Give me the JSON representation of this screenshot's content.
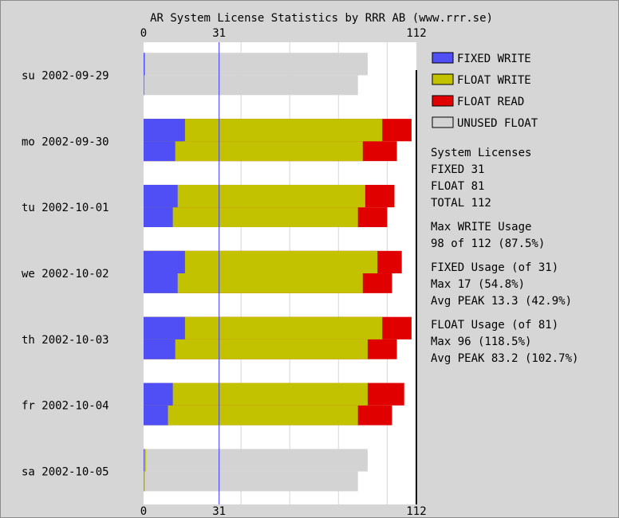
{
  "chart_data": {
    "type": "bar",
    "title": "AR System License Statistics by RRR AB (www.rrr.se)",
    "xlim": [
      0,
      112
    ],
    "xticks": [
      0,
      31,
      112
    ],
    "categories": [
      "su 2002-09-29",
      "mo 2002-09-30",
      "tu 2002-10-01",
      "we 2002-10-02",
      "th 2002-10-03",
      "fr 2002-10-04",
      "sa 2002-10-05"
    ],
    "colors": {
      "fixed_write": "#4f4ff5",
      "float_write": "#c2c200",
      "float_read": "#e00000",
      "unused_float": "#d3d3d3",
      "fixed_line": "#3a3aff"
    },
    "series": [
      {
        "name": "FIXED WRITE",
        "peak": [
          0.5,
          17,
          14,
          17,
          17,
          12,
          0.3
        ],
        "avg": [
          0.2,
          13,
          12,
          14,
          13,
          10,
          0.1
        ]
      },
      {
        "name": "FLOAT WRITE",
        "peak": [
          0.5,
          98,
          91,
          96,
          98,
          92,
          1.0
        ],
        "avg": [
          0.3,
          90,
          88,
          90,
          92,
          88,
          0.5
        ]
      },
      {
        "name": "FLOAT READ",
        "peak": [
          0,
          110,
          103,
          106,
          110,
          107,
          0
        ],
        "avg": [
          0,
          104,
          100,
          102,
          104,
          102,
          0
        ]
      },
      {
        "name": "UNUSED FLOAT",
        "peak": [
          92,
          98,
          98,
          98,
          98,
          98,
          92
        ],
        "avg": [
          88,
          88,
          88,
          88,
          88,
          88,
          88
        ]
      }
    ],
    "legend": [
      {
        "name": "FIXED WRITE",
        "color": "#4f4ff5"
      },
      {
        "name": "FLOAT WRITE",
        "color": "#c2c200"
      },
      {
        "name": "FLOAT READ",
        "color": "#e00000"
      },
      {
        "name": "UNUSED FLOAT",
        "color": "#d3d3d3"
      }
    ],
    "legend_position": "right",
    "stats": [
      [
        "System Licenses",
        "FIXED 31",
        "FLOAT 81",
        "TOTAL 112"
      ],
      [
        "Max WRITE Usage",
        "98 of 112 (87.5%)"
      ],
      [
        "FIXED Usage (of 31)",
        "Max 17 (54.8%)",
        "Avg PEAK 13.3 (42.9%)"
      ],
      [
        "FLOAT Usage (of 81)",
        "Max 96 (118.5%)",
        "Avg PEAK 83.2 (102.7%)"
      ]
    ]
  }
}
